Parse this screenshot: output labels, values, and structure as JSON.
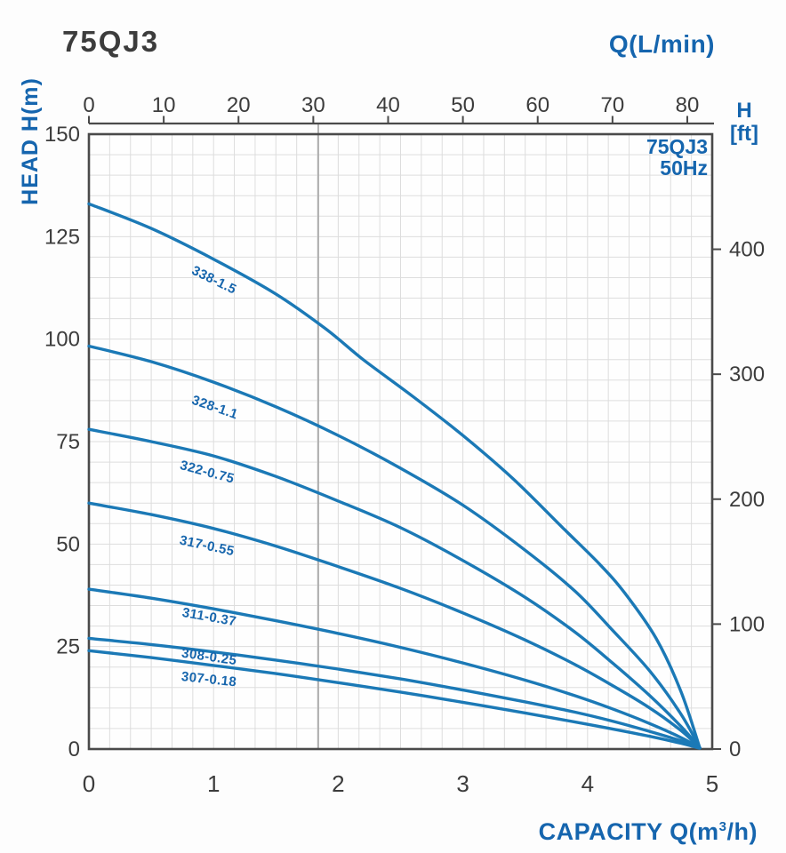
{
  "header": {
    "title": "75QJ3"
  },
  "chart_data": {
    "type": "line",
    "title": "75QJ3",
    "legend": {
      "model": "75QJ3",
      "frequency": "50Hz",
      "position": "top-right-inside"
    },
    "axes": {
      "top": {
        "title": "Q(L/min)",
        "ticks": [
          0,
          10,
          20,
          30,
          40,
          50,
          60,
          70,
          80
        ],
        "min": 0,
        "max": 83.33
      },
      "bottom": {
        "title": "CAPACITY Q(m3/h)",
        "title_prefix": "CAPACITY Q(m",
        "title_sup": "3",
        "title_suffix": "/h)",
        "ticks": [
          0,
          1,
          2,
          3,
          4,
          5
        ],
        "min": 0,
        "max": 5
      },
      "left": {
        "title": "HEAD H(m)",
        "ticks": [
          150,
          125,
          100,
          75,
          50,
          25,
          0
        ],
        "min": 0,
        "max": 150
      },
      "right": {
        "title": "H",
        "title2": "[ft]",
        "ticks": [
          400,
          300,
          200,
          100,
          0
        ],
        "min": 0,
        "max": 492
      }
    },
    "grid": {
      "on": true,
      "cols": 30,
      "rows": 30
    },
    "rated_line_q": 1.84,
    "colors": {
      "curve": "#1b79b6",
      "blue_text": "#1565ae",
      "curve_label": "#1766ad",
      "dark_text": "#3c3c3c",
      "border": "#4a4a4a",
      "grid": "#dddddd",
      "rated_line": "#ababab"
    },
    "series": [
      {
        "name": "338-1.5",
        "label_q": 0.99,
        "label_h": 113.5,
        "label_angle": 26,
        "points": [
          [
            0,
            133
          ],
          [
            0.5,
            127
          ],
          [
            1,
            119.5
          ],
          [
            1.5,
            111
          ],
          [
            1.9,
            102.5
          ],
          [
            2.2,
            95
          ],
          [
            2.6,
            86
          ],
          [
            3,
            76.5
          ],
          [
            3.4,
            66
          ],
          [
            3.8,
            54
          ],
          [
            4.1,
            45
          ],
          [
            4.3,
            38
          ],
          [
            4.55,
            27
          ],
          [
            4.75,
            14
          ],
          [
            4.9,
            0.3
          ]
        ]
      },
      {
        "name": "328-1.1",
        "label_q": 1.0,
        "label_h": 82.4,
        "label_angle": 19,
        "points": [
          [
            0,
            98.3
          ],
          [
            0.5,
            94.5
          ],
          [
            1,
            89.5
          ],
          [
            1.5,
            83.5
          ],
          [
            2,
            76.5
          ],
          [
            2.5,
            68.5
          ],
          [
            3,
            59.5
          ],
          [
            3.5,
            48.5
          ],
          [
            3.9,
            38.5
          ],
          [
            4.2,
            29
          ],
          [
            4.5,
            19
          ],
          [
            4.75,
            8.5
          ],
          [
            4.9,
            0.3
          ]
        ]
      },
      {
        "name": "322-0.75",
        "label_q": 0.94,
        "label_h": 66.6,
        "label_angle": 15,
        "points": [
          [
            0,
            78
          ],
          [
            0.5,
            75
          ],
          [
            1,
            71.5
          ],
          [
            1.5,
            66.5
          ],
          [
            2,
            60.5
          ],
          [
            2.5,
            54
          ],
          [
            3,
            46
          ],
          [
            3.5,
            37
          ],
          [
            3.9,
            28.5
          ],
          [
            4.2,
            21
          ],
          [
            4.5,
            13
          ],
          [
            4.75,
            5.5
          ],
          [
            4.9,
            0.3
          ]
        ]
      },
      {
        "name": "317-0.55",
        "label_q": 0.94,
        "label_h": 48.6,
        "label_angle": 12,
        "points": [
          [
            0,
            60
          ],
          [
            0.5,
            57.2
          ],
          [
            1,
            53.8
          ],
          [
            1.5,
            49.5
          ],
          [
            2,
            44.5
          ],
          [
            2.5,
            39.2
          ],
          [
            3,
            33.2
          ],
          [
            3.5,
            26.6
          ],
          [
            3.9,
            20.6
          ],
          [
            4.2,
            15.5
          ],
          [
            4.5,
            10
          ],
          [
            4.75,
            4.5
          ],
          [
            4.9,
            0.3
          ]
        ]
      },
      {
        "name": "311-0.37",
        "label_q": 0.96,
        "label_h": 31.2,
        "label_angle": 10,
        "points": [
          [
            0,
            39
          ],
          [
            0.5,
            36.8
          ],
          [
            1,
            34.2
          ],
          [
            1.5,
            31.3
          ],
          [
            2,
            28.2
          ],
          [
            2.5,
            24.8
          ],
          [
            3,
            21
          ],
          [
            3.5,
            16.8
          ],
          [
            3.9,
            13
          ],
          [
            4.2,
            9.8
          ],
          [
            4.5,
            6.2
          ],
          [
            4.75,
            2.8
          ],
          [
            4.9,
            0.3
          ]
        ]
      },
      {
        "name": "308-0.25",
        "label_q": 0.96,
        "label_h": 21.5,
        "label_angle": 8,
        "points": [
          [
            0,
            27
          ],
          [
            0.5,
            25.5
          ],
          [
            1,
            23.7
          ],
          [
            1.5,
            21.7
          ],
          [
            2,
            19.5
          ],
          [
            2.5,
            17.1
          ],
          [
            3,
            14.4
          ],
          [
            3.5,
            11.5
          ],
          [
            3.9,
            9
          ],
          [
            4.2,
            6.8
          ],
          [
            4.5,
            4.3
          ],
          [
            4.75,
            2
          ],
          [
            4.9,
            0.25
          ]
        ]
      },
      {
        "name": "307-0.18",
        "label_q": 0.96,
        "label_h": 16.0,
        "label_angle": 6,
        "points": [
          [
            0,
            24
          ],
          [
            0.5,
            22.3
          ],
          [
            1,
            20.4
          ],
          [
            1.5,
            18.4
          ],
          [
            2,
            16.2
          ],
          [
            2.5,
            13.9
          ],
          [
            3,
            11.4
          ],
          [
            3.5,
            8.8
          ],
          [
            3.9,
            6.6
          ],
          [
            4.2,
            4.9
          ],
          [
            4.5,
            3.1
          ],
          [
            4.75,
            1.4
          ],
          [
            4.9,
            0.2
          ]
        ]
      }
    ]
  }
}
